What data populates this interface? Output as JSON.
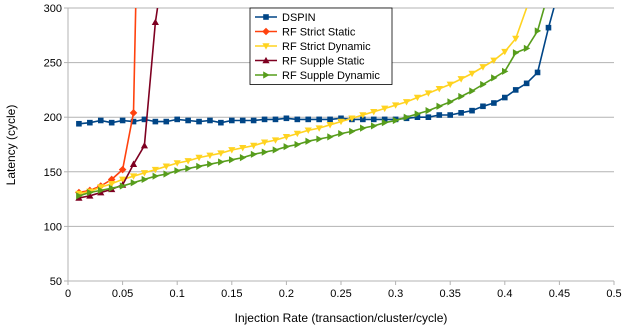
{
  "chart_data": {
    "type": "line",
    "title": "",
    "xlabel": "Injection Rate (transaction/cluster/cycle)",
    "ylabel": "Latency (cycle)",
    "xlim": [
      0,
      0.5
    ],
    "ylim": [
      50,
      300
    ],
    "xticks": [
      0,
      0.05,
      0.1,
      0.15,
      0.2,
      0.25,
      0.3,
      0.35,
      0.4,
      0.45,
      0.5
    ],
    "xtick_labels": [
      "0",
      "0.05",
      "0.1",
      "0.15",
      "0.2",
      "0.25",
      "0.3",
      "0.35",
      "0.4",
      "0.45",
      "0.5"
    ],
    "yticks": [
      50,
      100,
      150,
      200,
      250,
      300
    ],
    "ytick_labels": [
      "50",
      "100",
      "150",
      "200",
      "250",
      "300"
    ],
    "grid": "horizontal",
    "legend_position": "top-center",
    "series": [
      {
        "name": "DSPIN",
        "color": "#004586",
        "marker": "square",
        "x": [
          0.01,
          0.02,
          0.03,
          0.04,
          0.05,
          0.06,
          0.07,
          0.08,
          0.09,
          0.1,
          0.11,
          0.12,
          0.13,
          0.14,
          0.15,
          0.16,
          0.17,
          0.18,
          0.19,
          0.2,
          0.21,
          0.22,
          0.23,
          0.24,
          0.25,
          0.26,
          0.27,
          0.28,
          0.29,
          0.3,
          0.31,
          0.32,
          0.33,
          0.34,
          0.35,
          0.36,
          0.37,
          0.38,
          0.39,
          0.4,
          0.41,
          0.42,
          0.43,
          0.44,
          0.445
        ],
        "y": [
          194,
          195,
          197,
          195,
          197,
          196,
          198,
          196,
          196,
          198,
          197,
          196,
          197,
          195,
          197,
          197,
          197,
          198,
          198,
          199,
          198,
          198,
          198,
          198,
          199,
          198,
          198,
          198,
          198,
          198,
          199,
          200,
          200,
          202,
          202,
          204,
          206,
          210,
          213,
          218,
          225,
          231,
          241,
          282,
          300
        ]
      },
      {
        "name": "RF Strict Static",
        "color": "#ff420e",
        "marker": "diamond",
        "x": [
          0.01,
          0.02,
          0.03,
          0.04,
          0.05,
          0.06,
          0.062
        ],
        "y": [
          131,
          133,
          137,
          143,
          152,
          204,
          300
        ]
      },
      {
        "name": "RF Strict Dynamic",
        "color": "#ffd320",
        "marker": "triangle-down",
        "x": [
          0.01,
          0.02,
          0.03,
          0.04,
          0.05,
          0.06,
          0.07,
          0.08,
          0.09,
          0.1,
          0.11,
          0.12,
          0.13,
          0.14,
          0.15,
          0.16,
          0.17,
          0.18,
          0.19,
          0.2,
          0.21,
          0.22,
          0.23,
          0.24,
          0.25,
          0.26,
          0.27,
          0.28,
          0.29,
          0.3,
          0.31,
          0.32,
          0.33,
          0.34,
          0.35,
          0.36,
          0.37,
          0.38,
          0.39,
          0.4,
          0.41,
          0.42
        ],
        "y": [
          130,
          132,
          136,
          139,
          143,
          146,
          149,
          152,
          155,
          158,
          160,
          163,
          165,
          167,
          170,
          172,
          174,
          177,
          179,
          182,
          185,
          188,
          190,
          193,
          196,
          199,
          202,
          205,
          208,
          211,
          214,
          218,
          222,
          226,
          230,
          235,
          240,
          246,
          252,
          260,
          272,
          300
        ]
      },
      {
        "name": "RF Supple Static",
        "color": "#7e0021",
        "marker": "triangle-up",
        "x": [
          0.01,
          0.02,
          0.03,
          0.04,
          0.05,
          0.06,
          0.07,
          0.08,
          0.082
        ],
        "y": [
          126,
          128,
          131,
          134,
          138,
          157,
          174,
          287,
          300
        ]
      },
      {
        "name": "RF Supple Dynamic",
        "color": "#579d1c",
        "marker": "triangle-right",
        "x": [
          0.01,
          0.02,
          0.03,
          0.04,
          0.05,
          0.06,
          0.07,
          0.08,
          0.09,
          0.1,
          0.11,
          0.12,
          0.13,
          0.14,
          0.15,
          0.16,
          0.17,
          0.18,
          0.19,
          0.2,
          0.21,
          0.22,
          0.23,
          0.24,
          0.25,
          0.26,
          0.27,
          0.28,
          0.29,
          0.3,
          0.31,
          0.32,
          0.33,
          0.34,
          0.35,
          0.36,
          0.37,
          0.38,
          0.39,
          0.4,
          0.41,
          0.42,
          0.43,
          0.436
        ],
        "y": [
          128,
          131,
          133,
          135,
          137,
          140,
          143,
          146,
          148,
          151,
          153,
          155,
          157,
          159,
          161,
          163,
          166,
          168,
          170,
          173,
          175,
          178,
          180,
          182,
          185,
          187,
          190,
          192,
          195,
          197,
          200,
          203,
          206,
          210,
          214,
          219,
          224,
          230,
          236,
          242,
          259,
          263,
          279,
          300
        ]
      }
    ]
  }
}
